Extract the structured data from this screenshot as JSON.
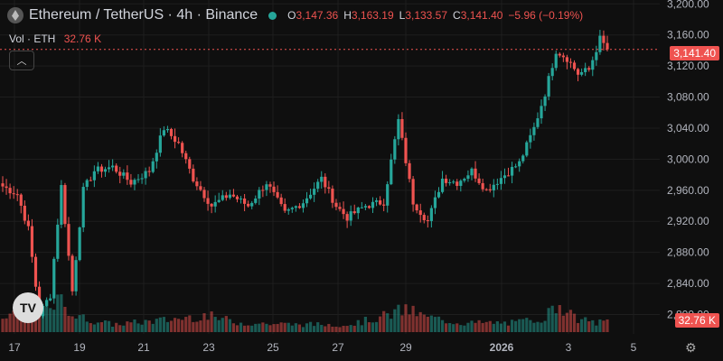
{
  "header": {
    "title": "Ethereum / TetherUS · 4h · Binance",
    "ohlc": [
      {
        "k": "O",
        "v": "3,147.36"
      },
      {
        "k": "H",
        "v": "3,163.19"
      },
      {
        "k": "L",
        "v": "3,133.57"
      },
      {
        "k": "C",
        "v": "3,141.40"
      },
      {
        "k": "",
        "v": "−5.96 (−0.19%)"
      }
    ],
    "symbol_icon": "ethereum-icon"
  },
  "volume": {
    "label": "Vol · ETH",
    "value": "32.76 K"
  },
  "collapse_icon": "chevron-up-icon",
  "logo_text": "TV",
  "price_tag": "3,141.40",
  "volume_tag": "32.76 K",
  "settings_icon": "gear-icon",
  "colors": {
    "up": "#26a69a",
    "down": "#ef5350",
    "bg": "#0f0f0f",
    "grid": "#1e1e1e"
  },
  "chart_data": {
    "type": "candlestick",
    "y_axis": {
      "ticks": [
        "3,200.00",
        "3,160.00",
        "3,120.00",
        "3,080.00",
        "3,040.00",
        "3,000.00",
        "2,960.00",
        "2,920.00",
        "2,880.00",
        "2,840.00",
        "2,800.00"
      ],
      "range": [
        2775,
        3205
      ]
    },
    "x_axis": {
      "ticks": [
        "17",
        "19",
        "21",
        "23",
        "25",
        "27",
        "29",
        "2026",
        "3",
        "5"
      ]
    },
    "last_price": 3141.4,
    "anchors": [
      [
        0,
        2965
      ],
      [
        4,
        2955
      ],
      [
        7,
        2910
      ],
      [
        10,
        2800
      ],
      [
        13,
        2825
      ],
      [
        16,
        2965
      ],
      [
        19,
        2830
      ],
      [
        22,
        2960
      ],
      [
        25,
        2985
      ],
      [
        30,
        2990
      ],
      [
        35,
        2970
      ],
      [
        40,
        2985
      ],
      [
        44,
        3040
      ],
      [
        48,
        3020
      ],
      [
        52,
        2975
      ],
      [
        57,
        2940
      ],
      [
        62,
        2955
      ],
      [
        67,
        2940
      ],
      [
        72,
        2970
      ],
      [
        77,
        2930
      ],
      [
        82,
        2945
      ],
      [
        87,
        2975
      ],
      [
        91,
        2940
      ],
      [
        94,
        2925
      ],
      [
        99,
        2940
      ],
      [
        104,
        2945
      ],
      [
        108,
        3050
      ],
      [
        112,
        2945
      ],
      [
        116,
        2920
      ],
      [
        120,
        2975
      ],
      [
        124,
        2970
      ],
      [
        128,
        2985
      ],
      [
        132,
        2960
      ],
      [
        137,
        2980
      ],
      [
        141,
        2995
      ],
      [
        145,
        3040
      ],
      [
        148,
        3085
      ],
      [
        151,
        3140
      ],
      [
        154,
        3130
      ],
      [
        157,
        3110
      ],
      [
        160,
        3115
      ],
      [
        163,
        3155
      ],
      [
        165,
        3141
      ]
    ],
    "volume_anchors": [
      [
        0,
        0.45
      ],
      [
        10,
        0.7
      ],
      [
        16,
        1.0
      ],
      [
        20,
        0.5
      ],
      [
        30,
        0.25
      ],
      [
        45,
        0.4
      ],
      [
        55,
        0.55
      ],
      [
        65,
        0.3
      ],
      [
        80,
        0.25
      ],
      [
        95,
        0.25
      ],
      [
        105,
        0.55
      ],
      [
        110,
        0.75
      ],
      [
        115,
        0.5
      ],
      [
        125,
        0.3
      ],
      [
        140,
        0.3
      ],
      [
        148,
        0.5
      ],
      [
        152,
        0.95
      ],
      [
        156,
        0.45
      ],
      [
        162,
        0.3
      ],
      [
        165,
        0.35
      ]
    ]
  }
}
